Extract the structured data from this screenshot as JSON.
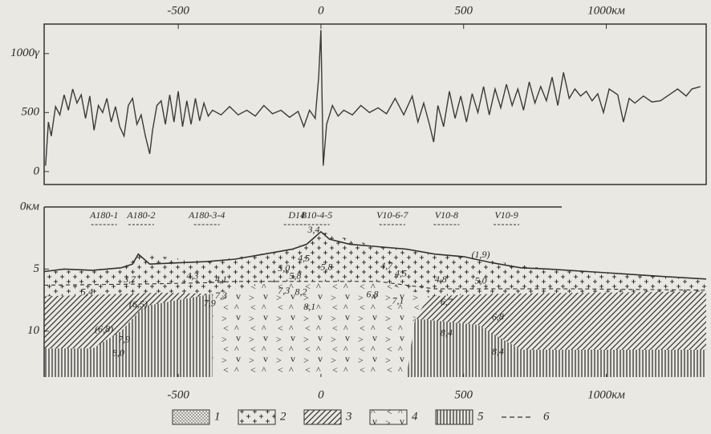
{
  "chart_data": [
    {
      "type": "line",
      "color": "#3a3a3a",
      "xlim": [
        -970,
        1350
      ],
      "xticks": [
        -500,
        0,
        500,
        {
          "value": 1000,
          "label": "1000км"
        }
      ],
      "ylim": [
        -110,
        1250
      ],
      "yticks": [
        0,
        500,
        {
          "value": 1000,
          "label": "1000γ"
        }
      ],
      "x": [
        -965,
        -955,
        -945,
        -930,
        -915,
        -900,
        -885,
        -870,
        -855,
        -840,
        -825,
        -810,
        -795,
        -780,
        -765,
        -750,
        -735,
        -720,
        -705,
        -690,
        -675,
        -660,
        -645,
        -630,
        -615,
        -600,
        -590,
        -575,
        -560,
        -545,
        -530,
        -515,
        -500,
        -485,
        -470,
        -455,
        -440,
        -425,
        -410,
        -395,
        -380,
        -350,
        -320,
        -290,
        -260,
        -230,
        -200,
        -170,
        -140,
        -110,
        -80,
        -60,
        -40,
        -20,
        -8,
        0,
        8,
        20,
        40,
        60,
        80,
        110,
        140,
        170,
        200,
        230,
        260,
        290,
        320,
        340,
        360,
        380,
        395,
        410,
        430,
        450,
        470,
        490,
        510,
        530,
        550,
        570,
        590,
        610,
        630,
        650,
        670,
        690,
        710,
        730,
        750,
        770,
        790,
        810,
        830,
        850,
        870,
        890,
        910,
        930,
        950,
        970,
        990,
        1010,
        1040,
        1060,
        1080,
        1100,
        1130,
        1160,
        1190,
        1220,
        1250,
        1280,
        1300,
        1330
      ],
      "values": [
        50,
        420,
        300,
        550,
        480,
        650,
        520,
        700,
        580,
        650,
        450,
        640,
        350,
        560,
        500,
        620,
        420,
        550,
        380,
        300,
        560,
        620,
        400,
        480,
        300,
        150,
        350,
        560,
        600,
        400,
        650,
        420,
        680,
        380,
        600,
        400,
        620,
        430,
        580,
        470,
        520,
        480,
        550,
        480,
        520,
        470,
        560,
        490,
        520,
        460,
        510,
        380,
        520,
        450,
        800,
        1200,
        50,
        400,
        560,
        470,
        520,
        480,
        560,
        500,
        540,
        490,
        620,
        480,
        640,
        420,
        580,
        400,
        250,
        560,
        380,
        680,
        450,
        640,
        420,
        660,
        500,
        720,
        480,
        700,
        540,
        740,
        560,
        700,
        520,
        760,
        580,
        720,
        600,
        800,
        560,
        840,
        620,
        700,
        640,
        680,
        600,
        660,
        500,
        700,
        650,
        420,
        620,
        580,
        640,
        590,
        600,
        650,
        700,
        640,
        700,
        720
      ]
    },
    {
      "type": "section",
      "xlim": [
        -970,
        1350
      ],
      "xticks": [
        -500,
        0,
        500,
        {
          "value": 1000,
          "label": "1000км"
        }
      ],
      "ylim": [
        0,
        13.7
      ],
      "yticks": [
        {
          "value": 0,
          "label": "0км"
        },
        5,
        10
      ],
      "inverted": true,
      "seafloor": {
        "x": [
          -970,
          -900,
          -800,
          -700,
          -660,
          -640,
          -600,
          -500,
          -400,
          -300,
          -200,
          -100,
          -50,
          -20,
          0,
          30,
          100,
          200,
          300,
          400,
          500,
          600,
          700,
          800,
          1000,
          1200,
          1350
        ],
        "values": [
          5.2,
          5.0,
          5.1,
          4.9,
          4.6,
          3.8,
          4.6,
          4.5,
          4.4,
          4.2,
          3.8,
          3.4,
          3.0,
          2.4,
          2.0,
          2.6,
          3.0,
          3.2,
          3.4,
          3.8,
          4.0,
          4.5,
          4.9,
          5.0,
          5.3,
          5.6,
          5.8
        ]
      },
      "dashed": {
        "x": [
          -970,
          -600,
          -400,
          -300,
          -150,
          0,
          200,
          300,
          400,
          600,
          900,
          1350
        ],
        "values": [
          6.3,
          6.2,
          6.1,
          6.0,
          6.0,
          6.0,
          6.0,
          6.3,
          6.6,
          6.6,
          6.6,
          6.7
        ]
      },
      "regions": [
        {
          "legend": 1,
          "points": [
            [
              -970,
              5.2
            ],
            [
              -700,
              4.9
            ],
            [
              -640,
              3.8
            ],
            [
              -400,
              4.4
            ],
            [
              -100,
              3.4
            ],
            [
              0,
              2.0
            ],
            [
              200,
              3.2
            ],
            [
              500,
              4.0
            ],
            [
              800,
              5.0
            ],
            [
              1350,
              5.8
            ],
            [
              1350,
              6.8
            ],
            [
              600,
              7.0
            ],
            [
              380,
              7.2
            ],
            [
              200,
              6.0
            ],
            [
              -150,
              6.0
            ],
            [
              -380,
              7.0
            ],
            [
              -560,
              6.9
            ],
            [
              -970,
              7.2
            ]
          ]
        },
        {
          "legend": 2,
          "points": [
            [
              -970,
              7.2
            ],
            [
              -560,
              6.9
            ],
            [
              -380,
              7.0
            ],
            [
              -620,
              8.0
            ],
            [
              -700,
              10.0
            ],
            [
              -800,
              11.4
            ],
            [
              -970,
              11.4
            ]
          ]
        },
        {
          "legend": 4,
          "points": [
            [
              -970,
              11.4
            ],
            [
              -800,
              11.4
            ],
            [
              -700,
              10.0
            ],
            [
              -620,
              8.0
            ],
            [
              -380,
              7.0
            ],
            [
              -380,
              13.7
            ],
            [
              -970,
              13.7
            ]
          ]
        },
        {
          "legend": 3,
          "points": [
            [
              -380,
              7.0
            ],
            [
              -150,
              6.0
            ],
            [
              200,
              6.0
            ],
            [
              380,
              7.2
            ],
            [
              330,
              9.0
            ],
            [
              300,
              13.7
            ],
            [
              -380,
              13.7
            ]
          ]
        },
        {
          "legend": 2,
          "points": [
            [
              380,
              7.2
            ],
            [
              600,
              7.0
            ],
            [
              1350,
              6.8
            ],
            [
              1350,
              11.5
            ],
            [
              700,
              11.5
            ],
            [
              550,
              9.5
            ],
            [
              330,
              9.0
            ]
          ]
        },
        {
          "legend": 4,
          "points": [
            [
              330,
              9.0
            ],
            [
              550,
              9.5
            ],
            [
              700,
              11.5
            ],
            [
              1350,
              11.5
            ],
            [
              1350,
              13.7
            ],
            [
              300,
              13.7
            ]
          ]
        }
      ],
      "stations": [
        {
          "label": "A180-1",
          "x": -760
        },
        {
          "label": "A180-2",
          "x": -630
        },
        {
          "label": "A180-3-4",
          "x": -400
        },
        {
          "label": "D14",
          "x": -85
        },
        {
          "label": "B10-4-5",
          "x": -15
        },
        {
          "label": "V10-6-7",
          "x": 250
        },
        {
          "label": "V10-8",
          "x": 440
        },
        {
          "label": "V10-9",
          "x": 650
        }
      ],
      "annotations": [
        {
          "text": "3,7",
          "x": -670,
          "y": 5.9
        },
        {
          "text": "5,4",
          "x": -820,
          "y": 6.9
        },
        {
          "text": "(6,5)",
          "x": -640,
          "y": 7.9
        },
        {
          "text": "(6,8)",
          "x": -760,
          "y": 9.9
        },
        {
          "text": "7,9",
          "x": -690,
          "y": 10.7
        },
        {
          "text": "8,0",
          "x": -710,
          "y": 11.8
        },
        {
          "text": "4,3",
          "x": -450,
          "y": 5.6
        },
        {
          "text": "4,1",
          "x": -350,
          "y": 5.9
        },
        {
          "text": "7,3",
          "x": -350,
          "y": 7.2
        },
        {
          "text": "7,9",
          "x": -390,
          "y": 7.8
        },
        {
          "text": "5,0",
          "x": -130,
          "y": 5.0
        },
        {
          "text": "4,5",
          "x": -60,
          "y": 4.2
        },
        {
          "text": "5,8",
          "x": -90,
          "y": 5.6
        },
        {
          "text": "5,8",
          "x": 20,
          "y": 4.9
        },
        {
          "text": "3,4",
          "x": -25,
          "y": 1.9
        },
        {
          "text": "7,3",
          "x": -130,
          "y": 6.8
        },
        {
          "text": "8,2",
          "x": -70,
          "y": 6.9
        },
        {
          "text": "8,1",
          "x": -40,
          "y": 8.1
        },
        {
          "text": "4,7",
          "x": 230,
          "y": 4.8
        },
        {
          "text": "4,5",
          "x": 280,
          "y": 5.4
        },
        {
          "text": "6,8",
          "x": 180,
          "y": 7.1
        },
        {
          "text": "7,1",
          "x": 270,
          "y": 7.6
        },
        {
          "text": "4,8",
          "x": 420,
          "y": 5.9
        },
        {
          "text": "5,0",
          "x": 560,
          "y": 6.0
        },
        {
          "text": "(1,9)",
          "x": 560,
          "y": 3.9
        },
        {
          "text": "6,7",
          "x": 440,
          "y": 7.7
        },
        {
          "text": "6,8",
          "x": 620,
          "y": 8.9
        },
        {
          "text": "8,4",
          "x": 440,
          "y": 10.2
        },
        {
          "text": "8,4",
          "x": 620,
          "y": 11.7
        }
      ],
      "legend": [
        {
          "label": "1",
          "pattern": "stipple"
        },
        {
          "label": "2",
          "pattern": "crosses"
        },
        {
          "label": "3",
          "pattern": "hatch"
        },
        {
          "label": "4",
          "pattern": "volcanic"
        },
        {
          "label": "5",
          "pattern": "vertical"
        },
        {
          "label": "6",
          "pattern": "dashed"
        }
      ]
    }
  ]
}
